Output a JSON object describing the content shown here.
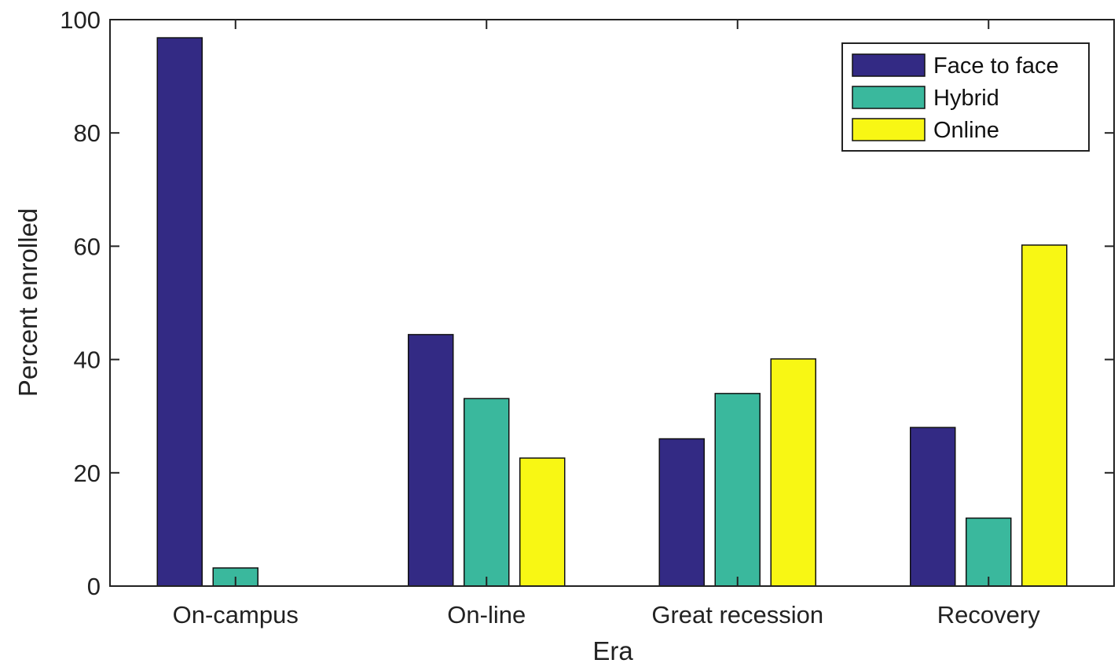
{
  "chart_data": {
    "type": "bar",
    "title": "",
    "xlabel": "Era",
    "ylabel": "Percent enrolled",
    "categories": [
      "On-campus",
      "On-line",
      "Great recession",
      "Recovery"
    ],
    "series": [
      {
        "name": "Face to face",
        "color": "#332a84",
        "values": [
          96.8,
          44.4,
          26.0,
          28.0
        ]
      },
      {
        "name": "Hybrid",
        "color": "#3ab89d",
        "values": [
          3.2,
          33.1,
          34.0,
          12.0
        ]
      },
      {
        "name": "Online",
        "color": "#f8f714",
        "values": [
          0,
          22.6,
          40.1,
          60.2
        ]
      }
    ],
    "ylim": [
      0,
      100
    ],
    "yticks": [
      0,
      20,
      40,
      60,
      80,
      100
    ],
    "grid": false,
    "legend_position": "top-right"
  }
}
